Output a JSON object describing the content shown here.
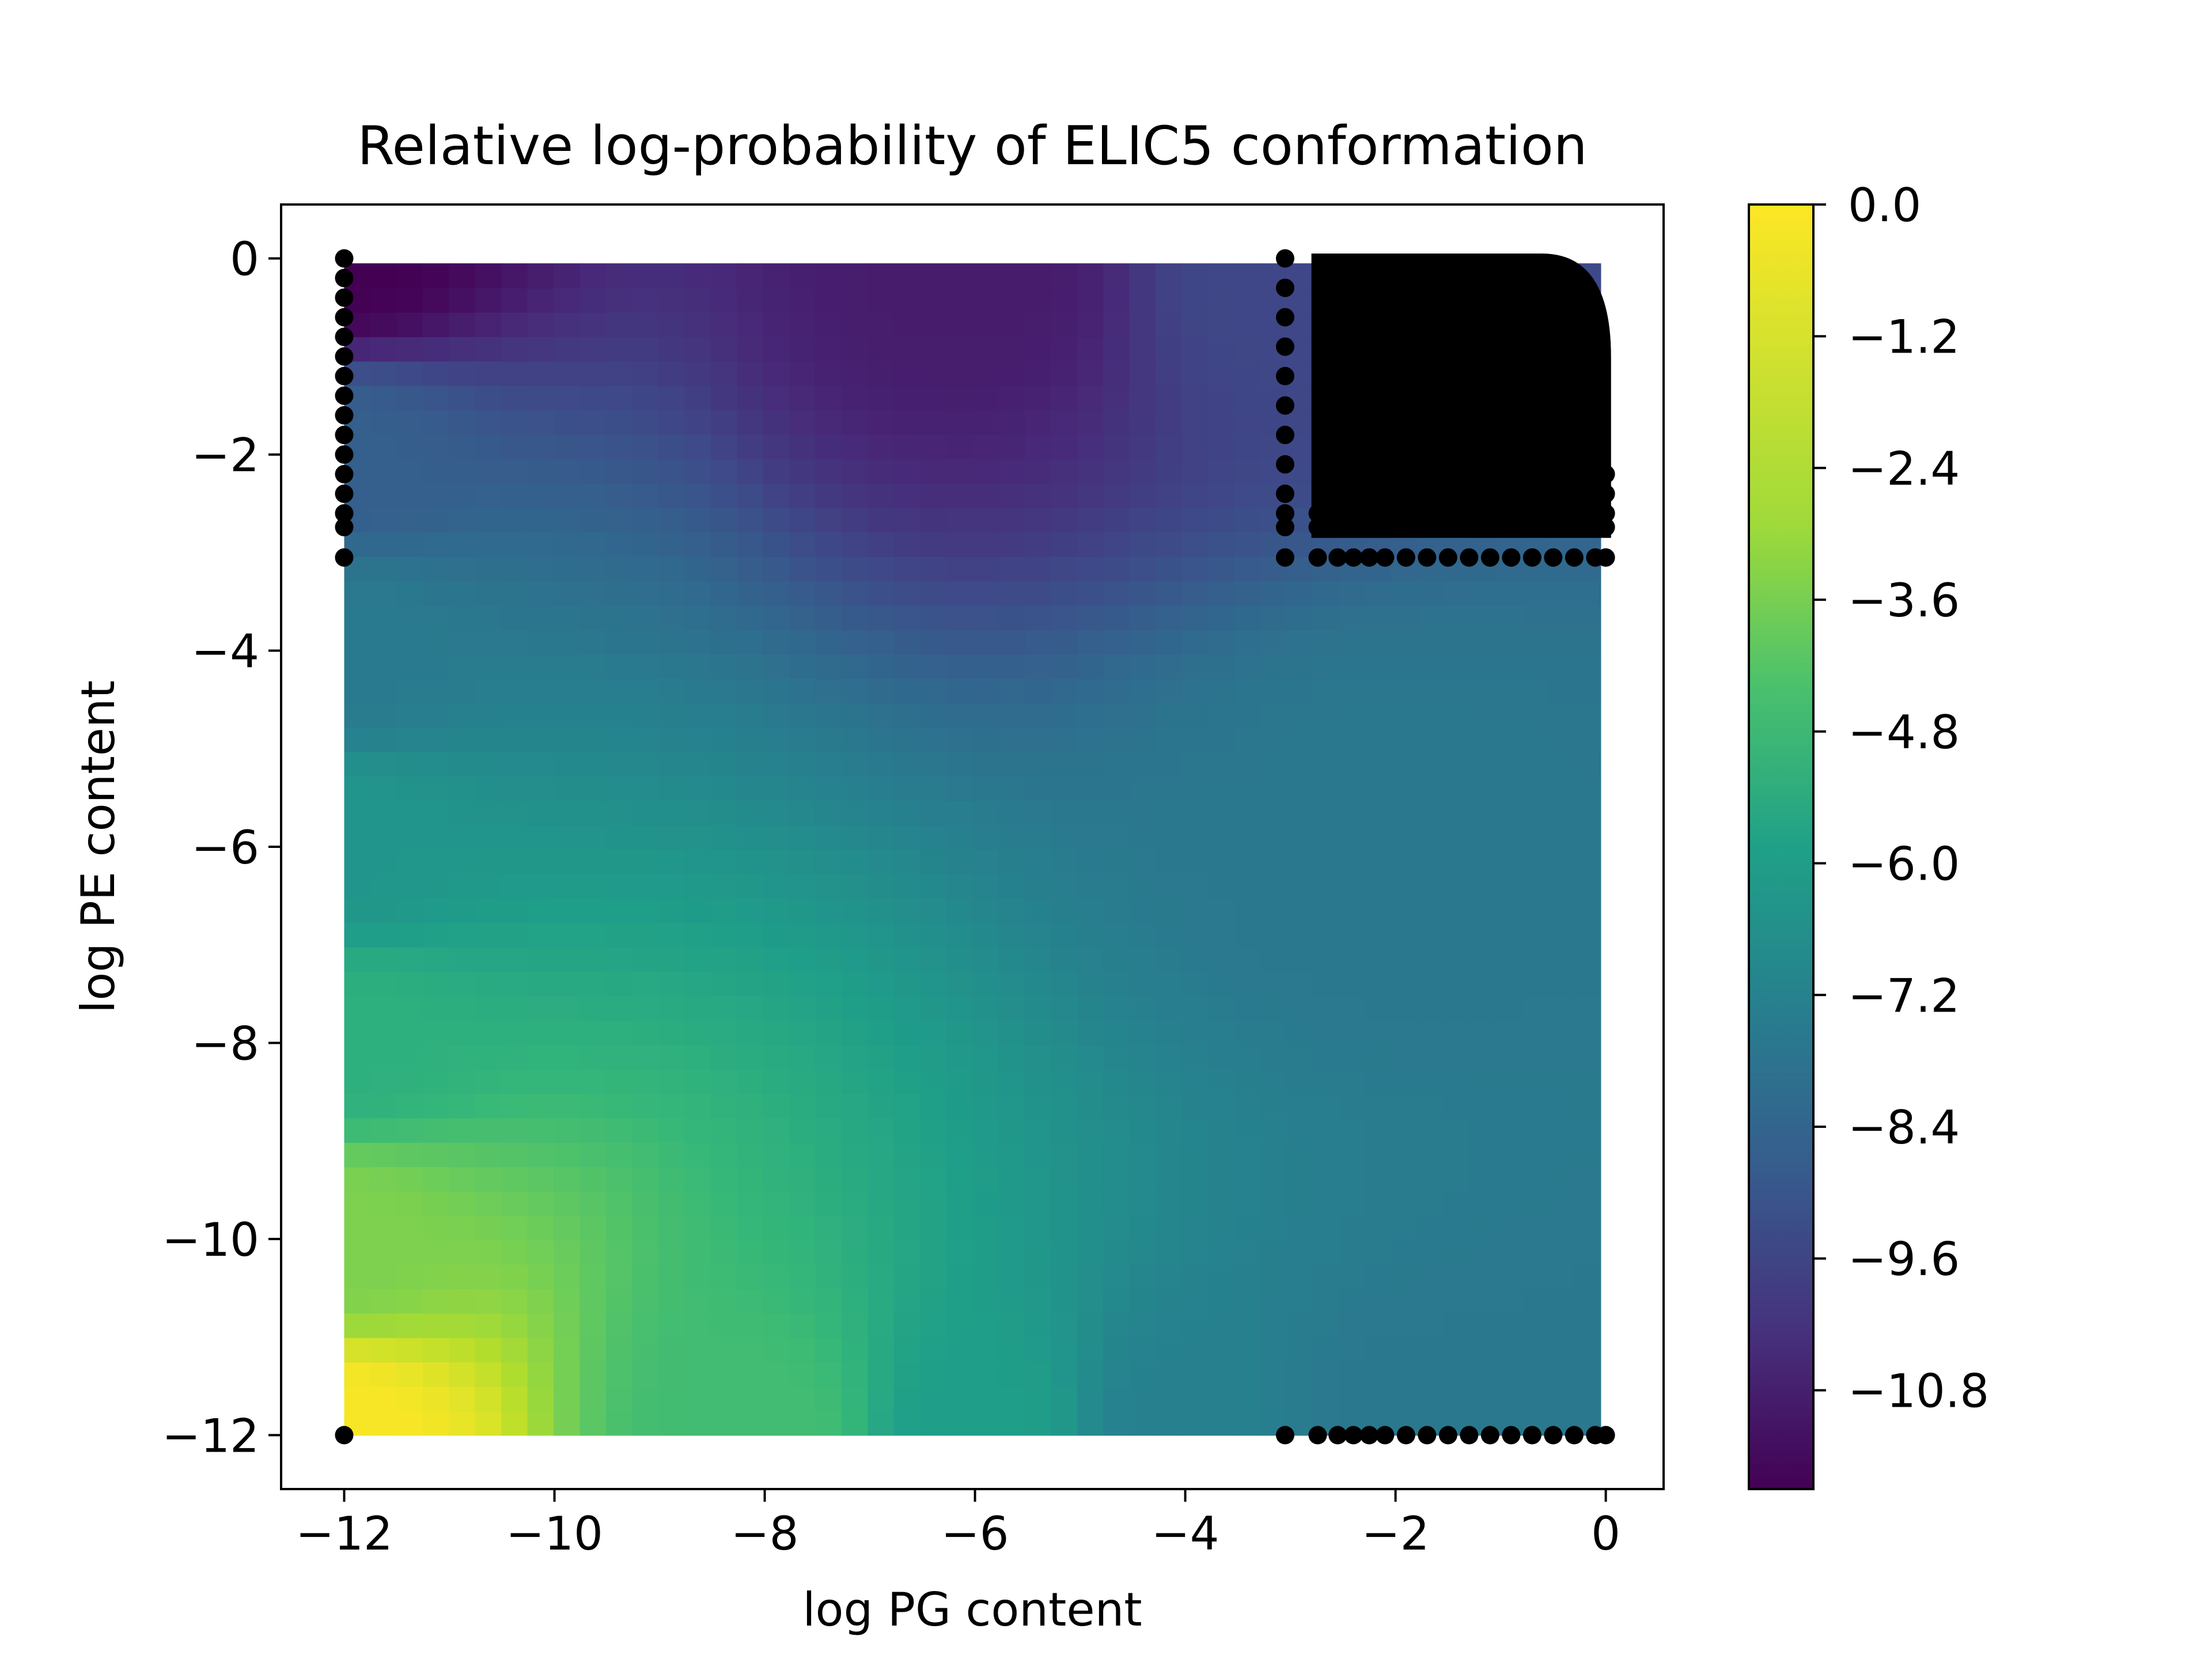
{
  "chart_data": {
    "type": "heatmap",
    "title": "Relative log-probability of ELIC5 conformation",
    "xlabel": "log PG content",
    "ylabel": "log PE content",
    "xlim": [
      -12.6,
      0.55
    ],
    "ylim": [
      -12.55,
      0.55
    ],
    "x_ticks": [
      -12,
      -10,
      -8,
      -6,
      -4,
      -2,
      0
    ],
    "x_tick_labels": [
      "−12",
      "−10",
      "−8",
      "−6",
      "−4",
      "−2",
      "0"
    ],
    "y_ticks": [
      0,
      -2,
      -4,
      -6,
      -8,
      -10,
      -12
    ],
    "y_tick_labels": [
      "0",
      "−2",
      "−4",
      "−6",
      "−8",
      "−10",
      "−12"
    ],
    "grid": false,
    "colormap": "viridis",
    "colorbar": {
      "range": [
        -11.7,
        0.0
      ],
      "ticks": [
        0.0,
        -1.2,
        -2.4,
        -3.6,
        -4.8,
        -6.0,
        -7.2,
        -8.4,
        -9.6,
        -10.8
      ],
      "tick_labels": [
        "0.0",
        "−1.2",
        "−2.4",
        "−3.6",
        "−4.8",
        "−6.0",
        "−7.2",
        "−8.4",
        "−9.6",
        "−10.8"
      ]
    },
    "field": {
      "x_range": [
        -12,
        -0.05
      ],
      "y_range": [
        -12,
        -0.05
      ],
      "sample_points": [
        {
          "x": -12,
          "y": -12,
          "value": -0.1
        },
        {
          "x": -12,
          "y": -10,
          "value": -2.3
        },
        {
          "x": -12,
          "y": -8,
          "value": -4.3
        },
        {
          "x": -12,
          "y": -6,
          "value": -5.6
        },
        {
          "x": -12,
          "y": -4,
          "value": -6.9
        },
        {
          "x": -12,
          "y": -2,
          "value": -8.2
        },
        {
          "x": -12,
          "y": 0,
          "value": -11.7
        },
        {
          "x": -8,
          "y": -12,
          "value": -3.6
        },
        {
          "x": -6,
          "y": -12,
          "value": -5.2
        },
        {
          "x": -4,
          "y": -12,
          "value": -6.6
        },
        {
          "x": -2,
          "y": -12,
          "value": -7.0
        },
        {
          "x": 0,
          "y": -12,
          "value": -7.0
        },
        {
          "x": -2,
          "y": -6,
          "value": -7.0
        },
        {
          "x": -6,
          "y": 0,
          "value": -10.8
        },
        {
          "x": -3,
          "y": 0,
          "value": -9.2
        }
      ]
    },
    "scatter_series": [
      {
        "color": "#000000",
        "points": [
          {
            "x": -12,
            "y": 0
          },
          {
            "x": -12,
            "y": -0.2
          },
          {
            "x": -12,
            "y": -0.4
          },
          {
            "x": -12,
            "y": -0.6
          },
          {
            "x": -12,
            "y": -0.8
          },
          {
            "x": -12,
            "y": -1.0
          },
          {
            "x": -12,
            "y": -1.2
          },
          {
            "x": -12,
            "y": -1.4
          },
          {
            "x": -12,
            "y": -1.6
          },
          {
            "x": -12,
            "y": -1.8
          },
          {
            "x": -12,
            "y": -2.0
          },
          {
            "x": -12,
            "y": -2.2
          },
          {
            "x": -12,
            "y": -2.4
          },
          {
            "x": -12,
            "y": -2.6
          },
          {
            "x": -12,
            "y": -2.74
          },
          {
            "x": -12,
            "y": -3.05
          },
          {
            "x": -12,
            "y": -12
          },
          {
            "x": -3.05,
            "y": 0
          },
          {
            "x": -3.05,
            "y": -0.3
          },
          {
            "x": -3.05,
            "y": -0.6
          },
          {
            "x": -3.05,
            "y": -0.9
          },
          {
            "x": -3.05,
            "y": -1.2
          },
          {
            "x": -3.05,
            "y": -1.5
          },
          {
            "x": -3.05,
            "y": -1.8
          },
          {
            "x": -3.05,
            "y": -2.1
          },
          {
            "x": -3.05,
            "y": -2.4
          },
          {
            "x": -3.05,
            "y": -2.6
          },
          {
            "x": -3.05,
            "y": -2.74
          },
          {
            "x": -3.05,
            "y": -3.05
          },
          {
            "x": -3.05,
            "y": -12
          },
          {
            "x": -2.74,
            "y": -2.6
          },
          {
            "x": -2.74,
            "y": -2.74
          },
          {
            "x": -2.74,
            "y": -3.05
          },
          {
            "x": -2.74,
            "y": -12
          },
          {
            "x": -2.55,
            "y": -2.74
          },
          {
            "x": -2.55,
            "y": -3.05
          },
          {
            "x": -2.55,
            "y": -12
          },
          {
            "x": -2.4,
            "y": -2.74
          },
          {
            "x": -2.4,
            "y": -3.05
          },
          {
            "x": -2.4,
            "y": -12
          },
          {
            "x": -2.25,
            "y": -3.05
          },
          {
            "x": -2.25,
            "y": -12
          },
          {
            "x": -2.1,
            "y": -3.05
          },
          {
            "x": -2.1,
            "y": -12
          },
          {
            "x": -1.9,
            "y": -3.05
          },
          {
            "x": -1.9,
            "y": -12
          },
          {
            "x": -1.7,
            "y": -3.05
          },
          {
            "x": -1.7,
            "y": -12
          },
          {
            "x": -1.5,
            "y": -3.05
          },
          {
            "x": -1.5,
            "y": -12
          },
          {
            "x": -1.3,
            "y": -3.05
          },
          {
            "x": -1.3,
            "y": -12
          },
          {
            "x": -1.1,
            "y": -3.05
          },
          {
            "x": -1.1,
            "y": -12
          },
          {
            "x": -0.9,
            "y": -3.05
          },
          {
            "x": -0.9,
            "y": -12
          },
          {
            "x": -0.7,
            "y": -3.05
          },
          {
            "x": -0.7,
            "y": -12
          },
          {
            "x": -0.5,
            "y": -3.05
          },
          {
            "x": -0.5,
            "y": -12
          },
          {
            "x": -0.3,
            "y": -3.05
          },
          {
            "x": -0.3,
            "y": -12
          },
          {
            "x": -0.1,
            "y": -3.05
          },
          {
            "x": -0.1,
            "y": -12
          },
          {
            "x": 0,
            "y": -3.05
          },
          {
            "x": 0,
            "y": -12
          },
          {
            "x": 0,
            "y": -2.74
          },
          {
            "x": 0,
            "y": -2.6
          },
          {
            "x": 0,
            "y": -2.4
          },
          {
            "x": 0,
            "y": -2.2
          }
        ]
      }
    ],
    "dense_region": {
      "x_range": [
        -2.8,
        0.05
      ],
      "y_range": [
        -2.85,
        0.05
      ],
      "color": "#000000"
    }
  }
}
